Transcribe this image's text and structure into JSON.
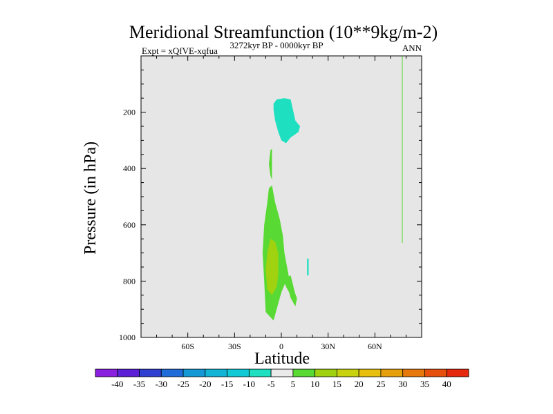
{
  "chart_data": {
    "type": "contour",
    "title": "Meridional Streamfunction (10**9kg/m-2)",
    "subtitle_left": "Expt = xQfVE-xqfua",
    "subtitle_center": "3272kyr BP - 0000kyr BP",
    "subtitle_right": "ANN",
    "xlabel": "Latitude",
    "ylabel": "Pressure (in hPa)",
    "xlim": [
      -90,
      90
    ],
    "ylim": [
      1000,
      0
    ],
    "x_ticks": [
      -60,
      -30,
      0,
      30,
      60
    ],
    "x_tick_labels": [
      "60S",
      "30S",
      "0",
      "30N",
      "60N"
    ],
    "y_ticks": [
      200,
      400,
      600,
      800,
      1000
    ],
    "y_tick_labels": [
      "200",
      "400",
      "600",
      "800",
      "1000"
    ],
    "background_color": "#e6e6e6",
    "regions": [
      {
        "name": "upper-negative-cell",
        "level": "-10 to -5",
        "color": "#1ee0c0",
        "polygon": [
          [
            -5,
            170
          ],
          [
            -3,
            155
          ],
          [
            2,
            150
          ],
          [
            6,
            155
          ],
          [
            9,
            230
          ],
          [
            12,
            250
          ],
          [
            11,
            270
          ],
          [
            6,
            290
          ],
          [
            3,
            310
          ],
          [
            0,
            300
          ],
          [
            -2,
            270
          ],
          [
            -4,
            230
          ],
          [
            -5,
            190
          ]
        ]
      },
      {
        "name": "thin-upper-sliver",
        "level": "5 to 10",
        "color": "#59d934",
        "polygon": [
          [
            -7,
            335
          ],
          [
            -6,
            330
          ],
          [
            -6,
            440
          ],
          [
            -7,
            425
          ],
          [
            -8,
            385
          ]
        ]
      },
      {
        "name": "lower-positive-cell",
        "level": "5 to 10",
        "color": "#59d934",
        "polygon": [
          [
            -6,
            460
          ],
          [
            -4,
            520
          ],
          [
            -1,
            580
          ],
          [
            1,
            640
          ],
          [
            2,
            700
          ],
          [
            5,
            790
          ],
          [
            10,
            860
          ],
          [
            9,
            890
          ],
          [
            6,
            860
          ],
          [
            3,
            800
          ],
          [
            0,
            840
          ],
          [
            -5,
            940
          ],
          [
            -10,
            910
          ],
          [
            -11,
            800
          ],
          [
            -12,
            700
          ],
          [
            -11,
            600
          ],
          [
            -9,
            520
          ],
          [
            -8,
            470
          ]
        ]
      },
      {
        "name": "lower-positive-core",
        "level": "10 to 15",
        "color": "#a0d20f",
        "polygon": [
          [
            -7,
            650
          ],
          [
            -4,
            660
          ],
          [
            -2,
            700
          ],
          [
            -2,
            780
          ],
          [
            -3,
            820
          ],
          [
            -6,
            850
          ],
          [
            -9,
            830
          ],
          [
            -10,
            760
          ],
          [
            -9,
            700
          ]
        ]
      },
      {
        "name": "southern-hook",
        "level": "5 to 10",
        "color": "#59d934",
        "polygon": [
          [
            1,
            790
          ],
          [
            6,
            780
          ],
          [
            10,
            870
          ],
          [
            7,
            860
          ],
          [
            3,
            820
          ]
        ]
      },
      {
        "name": "small-tick-18N",
        "level": "-10 to -5",
        "color": "#1ee0c0",
        "polygon": [
          [
            16.5,
            720
          ],
          [
            17.5,
            720
          ],
          [
            17.5,
            780
          ],
          [
            16.5,
            780
          ]
        ]
      },
      {
        "name": "thin-line-78N",
        "level": "5 to 10",
        "color": "#59d934",
        "polygon": [
          [
            77.3,
            0
          ],
          [
            77.8,
            0
          ],
          [
            77.8,
            665
          ],
          [
            77.3,
            665
          ]
        ]
      }
    ],
    "colorbar": {
      "labels": [
        "-40",
        "-35",
        "-30",
        "-25",
        "-20",
        "-15",
        "-10",
        "-5",
        "5",
        "10",
        "15",
        "20",
        "25",
        "30",
        "35",
        "40"
      ],
      "colors": [
        "#8a1fe0",
        "#5a1fd6",
        "#2e3fd1",
        "#1f6cd9",
        "#1499d6",
        "#12b5d6",
        "#12c9d6",
        "#1ee0c0",
        "#eaeaea",
        "#59d934",
        "#a0d20f",
        "#c8d20f",
        "#e6c00c",
        "#e6a00c",
        "#e6780c",
        "#e6500c",
        "#e6280c"
      ]
    }
  }
}
